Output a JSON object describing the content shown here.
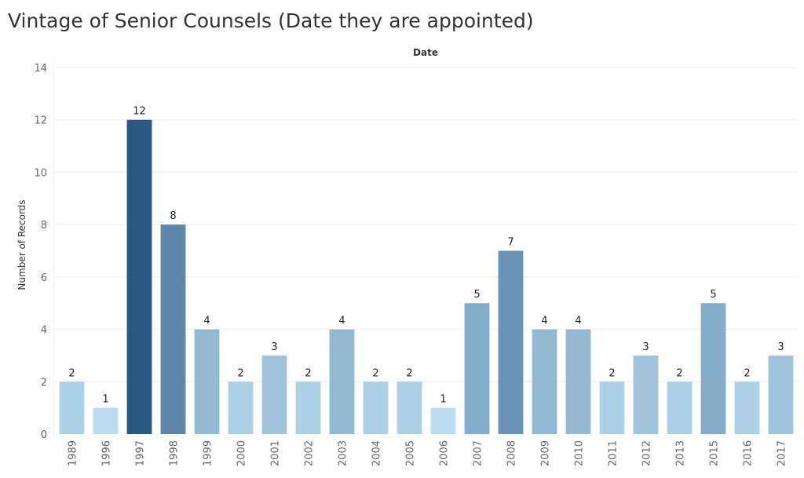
{
  "chart_data": {
    "type": "bar",
    "title": "Vintage of Senior Counsels (Date they are appointed)",
    "xlabel": "Date",
    "ylabel": "Number of Records",
    "categories": [
      "1989",
      "1996",
      "1997",
      "1998",
      "1999",
      "2000",
      "2001",
      "2002",
      "2003",
      "2004",
      "2005",
      "2006",
      "2007",
      "2008",
      "2009",
      "2010",
      "2011",
      "2012",
      "2013",
      "2015",
      "2016",
      "2017"
    ],
    "values": [
      2,
      1,
      12,
      8,
      4,
      2,
      3,
      2,
      4,
      2,
      2,
      1,
      5,
      7,
      4,
      4,
      2,
      3,
      2,
      5,
      2,
      3
    ],
    "ylim": [
      0,
      14
    ],
    "yticks": [
      0,
      2,
      4,
      6,
      8,
      10,
      12,
      14
    ],
    "grid": true,
    "color_scale": {
      "low": "#b9dcf0",
      "high": "#2a5783"
    }
  }
}
